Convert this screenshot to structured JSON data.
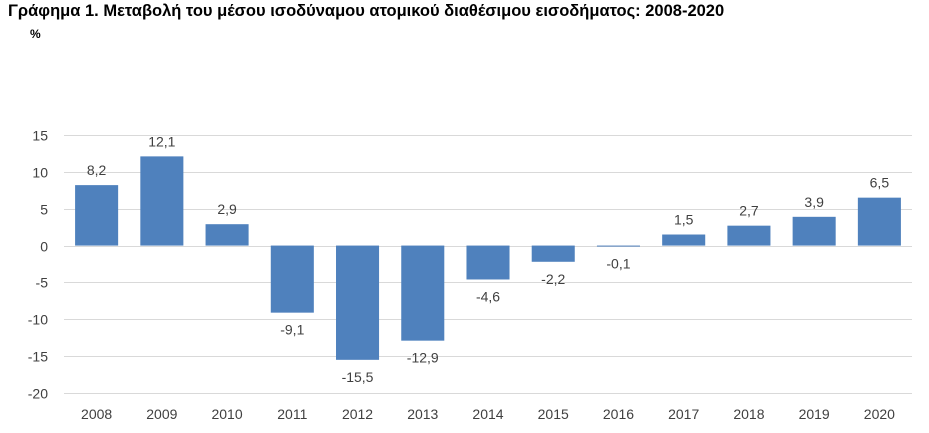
{
  "title": "Γράφημα 1. Μεταβολή του μέσου ισοδύναμου ατομικού διαθέσιμου εισοδήματος: 2008-2020",
  "unit": "%",
  "colors": {
    "bar": "#4f81bd",
    "grid": "#d9d9d9",
    "axis_text": "#404040"
  },
  "chart_data": {
    "type": "bar",
    "title": "Γράφημα 1. Μεταβολή του μέσου ισοδύναμου ατομικού διαθέσιμου εισοδήματος: 2008-2020",
    "ylabel": "%",
    "xlabel": "",
    "categories": [
      "2008",
      "2009",
      "2010",
      "2011",
      "2012",
      "2013",
      "2014",
      "2015",
      "2016",
      "2017",
      "2018",
      "2019",
      "2020"
    ],
    "values": [
      8.2,
      12.1,
      2.9,
      -9.1,
      -15.5,
      -12.9,
      -4.6,
      -2.2,
      -0.1,
      1.5,
      2.7,
      3.9,
      6.5
    ],
    "value_labels": [
      "8,2",
      "12,1",
      "2,9",
      "-9,1",
      "-15,5",
      "-12,9",
      "-4,6",
      "-2,2",
      "-0,1",
      "1,5",
      "2,7",
      "3,9",
      "6,5"
    ],
    "ylim": [
      -20,
      15
    ],
    "yticks": [
      15,
      10,
      5,
      0,
      -5,
      -10,
      -15,
      -20
    ],
    "ytick_labels": [
      "15",
      "10",
      "5",
      "0",
      "-5",
      "-10",
      "-15",
      "-20"
    ],
    "grid": true,
    "legend": "none"
  }
}
